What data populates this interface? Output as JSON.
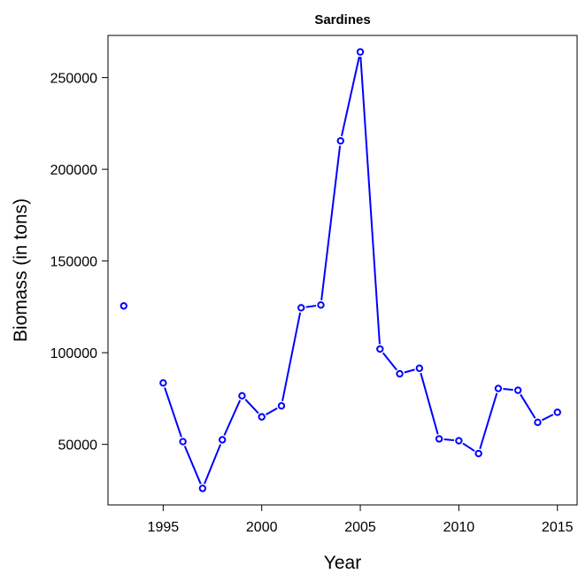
{
  "chart_data": {
    "type": "line",
    "title": "Sardines",
    "xlabel": "Year",
    "ylabel": "Biomass (in tons)",
    "xlim": [
      1992.2,
      2016.0
    ],
    "ylim": [
      17000,
      273000
    ],
    "x_ticks": [
      1995,
      2000,
      2005,
      2010,
      2015
    ],
    "y_ticks": [
      50000,
      100000,
      150000,
      200000,
      250000
    ],
    "x_tick_labels": [
      "1995",
      "2000",
      "2005",
      "2010",
      "2015"
    ],
    "y_tick_labels": [
      "50000",
      "100000",
      "150000",
      "200000",
      "250000"
    ],
    "grid": false,
    "legend": "none",
    "series_color": "#0000ff",
    "series": [
      {
        "x": [
          1993,
          1994,
          1995,
          1996,
          1997,
          1998,
          1999,
          2000,
          2001,
          2002,
          2003,
          2004,
          2005,
          2006,
          2007,
          2008,
          2009,
          2010,
          2011,
          2012,
          2013,
          2014,
          2015
        ],
        "values": [
          125500,
          null,
          83500,
          51500,
          26000,
          52500,
          76500,
          65000,
          71000,
          124500,
          126000,
          215500,
          264000,
          102000,
          88500,
          91500,
          53000,
          52000,
          45000,
          80500,
          79500,
          62000,
          67500
        ]
      }
    ]
  }
}
